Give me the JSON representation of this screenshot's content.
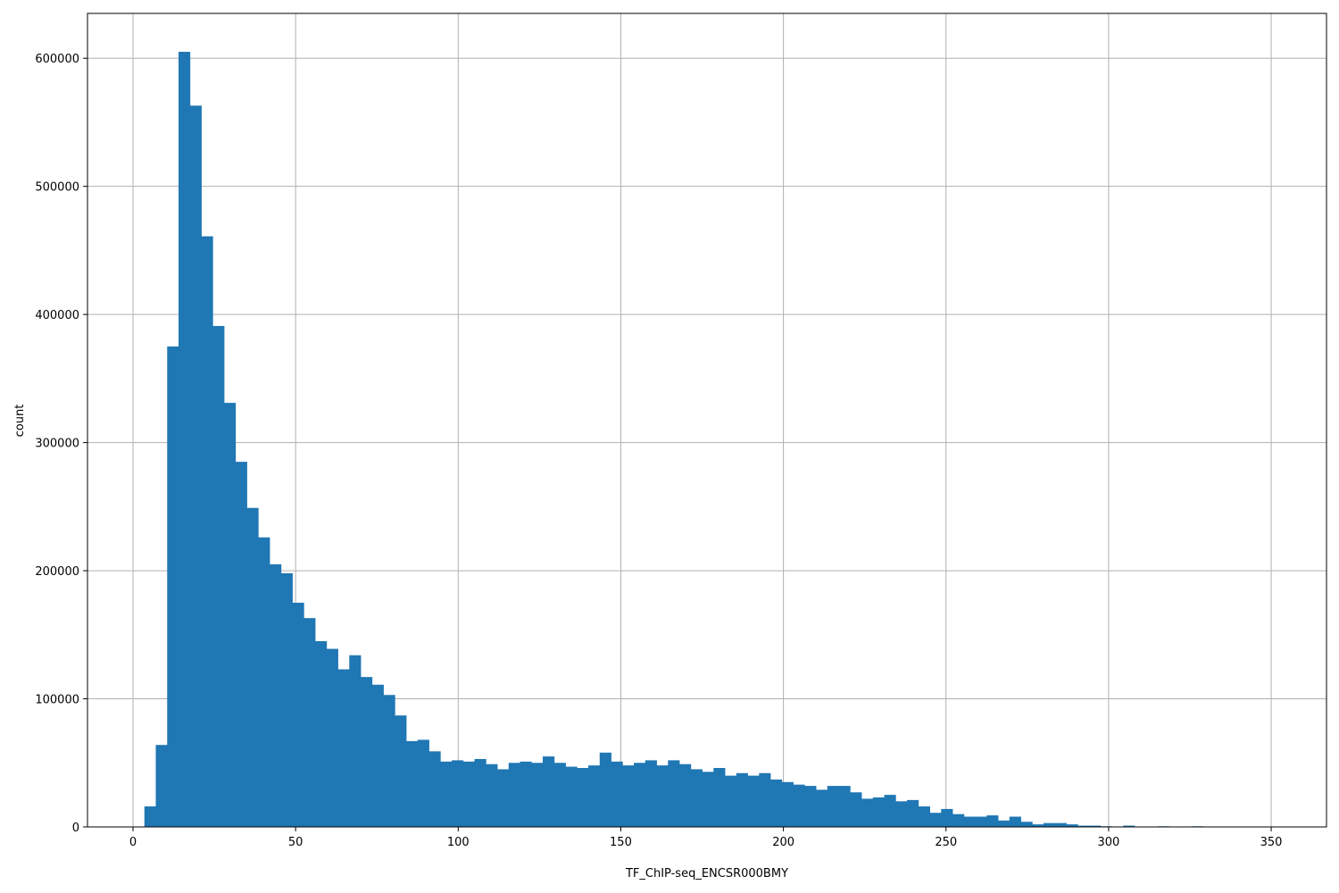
{
  "chart_data": {
    "type": "bar",
    "title": "",
    "xlabel": "TF_ChIP-seq_ENCSR000BMY",
    "ylabel": "count",
    "xlim": [
      -14,
      367
    ],
    "ylim": [
      0,
      635000
    ],
    "bin_width": 3.5,
    "bin_start": 3.5,
    "x_ticks": [
      0,
      50,
      100,
      150,
      200,
      250,
      300,
      350
    ],
    "y_ticks": [
      0,
      100000,
      200000,
      300000,
      400000,
      500000,
      600000
    ],
    "grid": true,
    "bar_color": "#1f77b4",
    "values": [
      16000,
      64000,
      375000,
      605000,
      563000,
      461000,
      391000,
      331000,
      285000,
      249000,
      226000,
      205000,
      198000,
      175000,
      163000,
      145000,
      139000,
      123000,
      134000,
      117000,
      111000,
      103000,
      87000,
      67000,
      68000,
      59000,
      51000,
      52000,
      51000,
      53000,
      49000,
      45000,
      50000,
      51000,
      50000,
      55000,
      50000,
      47000,
      46000,
      48000,
      58000,
      51000,
      48000,
      50000,
      52000,
      48000,
      52000,
      49000,
      45000,
      43000,
      46000,
      40000,
      42000,
      40000,
      42000,
      37000,
      35000,
      33000,
      32000,
      29000,
      32000,
      32000,
      27000,
      22000,
      23000,
      25000,
      20000,
      21000,
      16000,
      11000,
      14000,
      10000,
      8000,
      8000,
      9000,
      5000,
      8000,
      4000,
      2000,
      3000,
      3000,
      2000,
      1000,
      1000,
      500,
      300,
      1000,
      200,
      100,
      500,
      100,
      200,
      500,
      100,
      50,
      50,
      20,
      10,
      10,
      10,
      5
    ]
  }
}
